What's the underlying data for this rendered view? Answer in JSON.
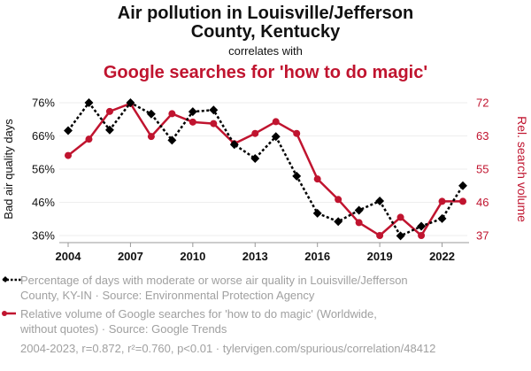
{
  "chart_data": {
    "type": "line",
    "title_line1": "Air pollution in Louisville/Jefferson",
    "title_line2": "County, Kentucky",
    "connector": "correlates with",
    "title2": "Google searches for 'how to do magic'",
    "x": [
      2004,
      2005,
      2006,
      2007,
      2008,
      2009,
      2010,
      2011,
      2012,
      2013,
      2014,
      2015,
      2016,
      2017,
      2018,
      2019,
      2020,
      2021,
      2022,
      2023
    ],
    "x_ticks": [
      "2004",
      "2007",
      "2010",
      "2013",
      "2016",
      "2019",
      "2022"
    ],
    "ylabel_left": "Bad air quality days",
    "ylabel_right": "Rel. search volume",
    "ylim_left": [
      36,
      76
    ],
    "ylim_right": [
      37,
      72
    ],
    "y_ticks_left": [
      "76%",
      "66%",
      "56%",
      "46%",
      "36%"
    ],
    "y_ticks_right": [
      "72",
      "63",
      "55",
      "46",
      "37"
    ],
    "grid": true,
    "series": [
      {
        "name": "Percentage of days with moderate or worse air quality in Louisville/Jefferson County, KY-IN · Source: Environmental Protection Agency",
        "axis": "left",
        "color": "#000000",
        "style": "dotted-diamond",
        "values": [
          67.6,
          76.0,
          67.8,
          76.0,
          72.6,
          64.7,
          73.3,
          73.8,
          63.4,
          59.2,
          65.8,
          53.9,
          42.7,
          40.2,
          43.6,
          46.4,
          35.9,
          38.8,
          41.1,
          51.0
        ]
      },
      {
        "name": "Relative volume of Google searches for 'how to do magic' (Worldwide, without quotes) · Source: Google Trends",
        "axis": "right",
        "color": "#c0142f",
        "style": "solid-circle",
        "values": [
          58.1,
          62.4,
          69.7,
          71.8,
          63.1,
          69.1,
          66.9,
          66.5,
          61.2,
          63.9,
          67.0,
          63.9,
          51.9,
          46.5,
          40.4,
          37.0,
          41.8,
          37.0,
          46.0,
          46.0
        ]
      }
    ],
    "legend": {
      "series1_line1": "Percentage of days with moderate or worse air quality in Louisville/Jefferson",
      "series1_line2": "County, KY-IN · Source: Environmental Protection Agency",
      "series2_line1": "Relative volume of Google searches for 'how to do magic' (Worldwide,",
      "series2_line2": "without quotes) · Source: Google Trends"
    },
    "footer": "2004-2023, r=0.872, r²=0.760, p<0.01 · tylervigen.com/spurious/correlation/48412"
  }
}
